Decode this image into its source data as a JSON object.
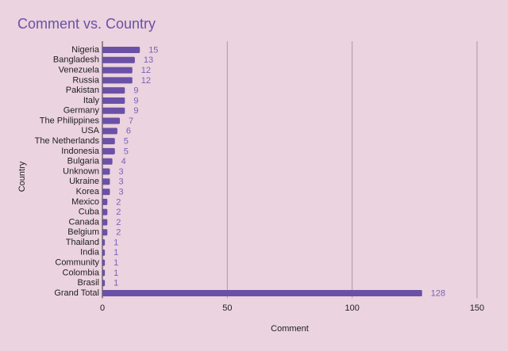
{
  "chart_data": {
    "type": "bar",
    "orientation": "horizontal",
    "title": "Comment vs. Country",
    "x_label": "Comment",
    "y_label": "Country",
    "categories": [
      "Nigeria",
      "Bangladesh",
      "Venezuela",
      "Russia",
      "Pakistan",
      "Italy",
      "Germany",
      "The Philippines",
      "USA",
      "The Netherlands",
      "Indonesia",
      "Bulgaria",
      "Unknown",
      "Ukraine",
      "Korea",
      "Mexico",
      "Cuba",
      "Canada",
      "Belgium",
      "Thailand",
      "India",
      "Community",
      "Colombia",
      "Brasil",
      "Grand Total"
    ],
    "values": [
      15,
      13,
      12,
      12,
      9,
      9,
      9,
      7,
      6,
      5,
      5,
      4,
      3,
      3,
      3,
      2,
      2,
      2,
      2,
      1,
      1,
      1,
      1,
      1,
      128
    ],
    "color": "#6a51a6",
    "xlim": [
      0,
      150
    ],
    "xticks": [
      0,
      50,
      100,
      150
    ],
    "grid": true
  }
}
